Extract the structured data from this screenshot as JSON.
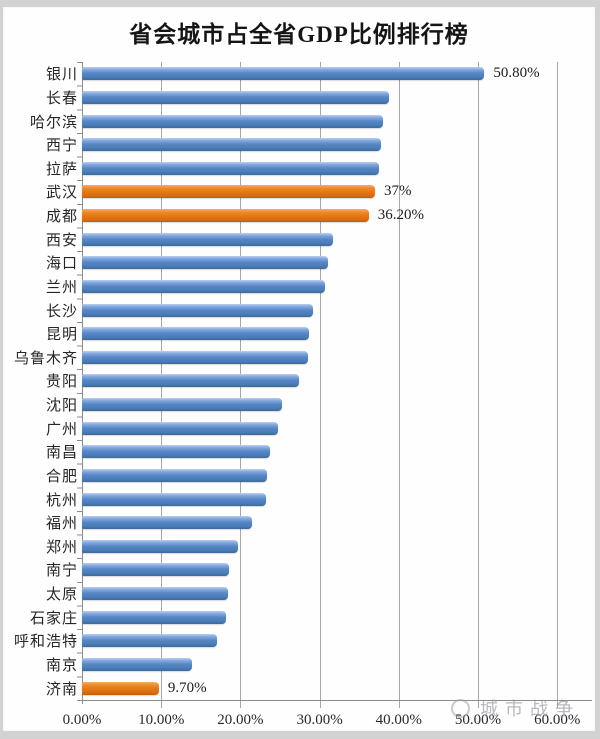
{
  "title": "省会城市占全省GDP比例排行榜",
  "watermark": {
    "text": "城市战争"
  },
  "chart_data": {
    "type": "bar",
    "orientation": "horizontal",
    "title": "省会城市占全省GDP比例排行榜",
    "xlabel": "",
    "ylabel": "",
    "xlim": [
      0,
      60
    ],
    "grid": "vertical",
    "x_tick_labels": [
      "0.00%",
      "10.00%",
      "20.00%",
      "30.00%",
      "40.00%",
      "50.00%",
      "60.00%"
    ],
    "bar_color_default": "#4f81bd",
    "bar_color_highlight": "#e8740e",
    "bars": [
      {
        "city": "银川",
        "value": 50.8,
        "label": "50.80%",
        "highlight": false
      },
      {
        "city": "长春",
        "value": 38.7,
        "label": "",
        "highlight": false
      },
      {
        "city": "哈尔滨",
        "value": 38.0,
        "label": "",
        "highlight": false
      },
      {
        "city": "西宁",
        "value": 37.7,
        "label": "",
        "highlight": false
      },
      {
        "city": "拉萨",
        "value": 37.5,
        "label": "",
        "highlight": false
      },
      {
        "city": "武汉",
        "value": 37.0,
        "label": "37%",
        "highlight": true
      },
      {
        "city": "成都",
        "value": 36.2,
        "label": "36.20%",
        "highlight": true
      },
      {
        "city": "西安",
        "value": 31.7,
        "label": "",
        "highlight": false
      },
      {
        "city": "海口",
        "value": 31.1,
        "label": "",
        "highlight": false
      },
      {
        "city": "兰州",
        "value": 30.7,
        "label": "",
        "highlight": false
      },
      {
        "city": "长沙",
        "value": 29.2,
        "label": "",
        "highlight": false
      },
      {
        "city": "昆明",
        "value": 28.7,
        "label": "",
        "highlight": false
      },
      {
        "city": "乌鲁木齐",
        "value": 28.5,
        "label": "",
        "highlight": false
      },
      {
        "city": "贵阳",
        "value": 27.4,
        "label": "",
        "highlight": false
      },
      {
        "city": "沈阳",
        "value": 25.2,
        "label": "",
        "highlight": false
      },
      {
        "city": "广州",
        "value": 24.7,
        "label": "",
        "highlight": false
      },
      {
        "city": "南昌",
        "value": 23.8,
        "label": "",
        "highlight": false
      },
      {
        "city": "合肥",
        "value": 23.3,
        "label": "",
        "highlight": false
      },
      {
        "city": "杭州",
        "value": 23.2,
        "label": "",
        "highlight": false
      },
      {
        "city": "福州",
        "value": 21.5,
        "label": "",
        "highlight": false
      },
      {
        "city": "郑州",
        "value": 19.7,
        "label": "",
        "highlight": false
      },
      {
        "city": "南宁",
        "value": 18.5,
        "label": "",
        "highlight": false
      },
      {
        "city": "太原",
        "value": 18.4,
        "label": "",
        "highlight": false
      },
      {
        "city": "石家庄",
        "value": 18.2,
        "label": "",
        "highlight": false
      },
      {
        "city": "呼和浩特",
        "value": 17.0,
        "label": "",
        "highlight": false
      },
      {
        "city": "南京",
        "value": 13.9,
        "label": "",
        "highlight": false
      },
      {
        "city": "济南",
        "value": 9.7,
        "label": "9.70%",
        "highlight": true
      }
    ]
  }
}
